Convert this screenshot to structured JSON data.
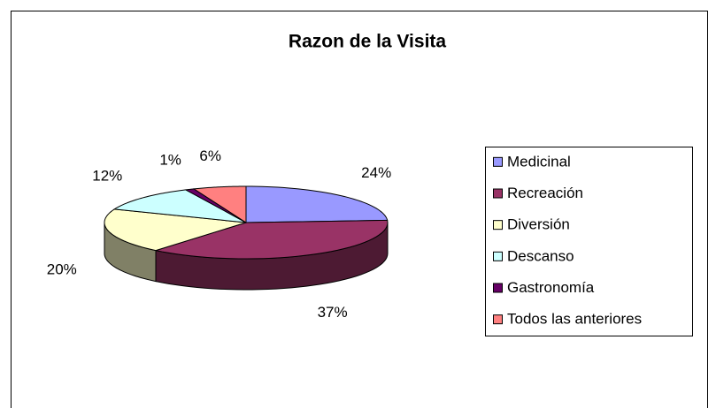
{
  "chart_data": {
    "type": "pie3d",
    "title": "Razon de la Visita",
    "categories": [
      "Medicinal",
      "Recreación",
      "Diversión",
      "Descanso",
      "Gastronomía",
      "Todos las anteriores"
    ],
    "values": [
      24,
      37,
      20,
      12,
      1,
      6
    ],
    "value_labels": [
      "24%",
      "37%",
      "20%",
      "12%",
      "1%",
      "6%"
    ],
    "colors": [
      "#9999ff",
      "#993366",
      "#ffffcc",
      "#ccffff",
      "#660066",
      "#ff8080"
    ],
    "legend": "right"
  }
}
